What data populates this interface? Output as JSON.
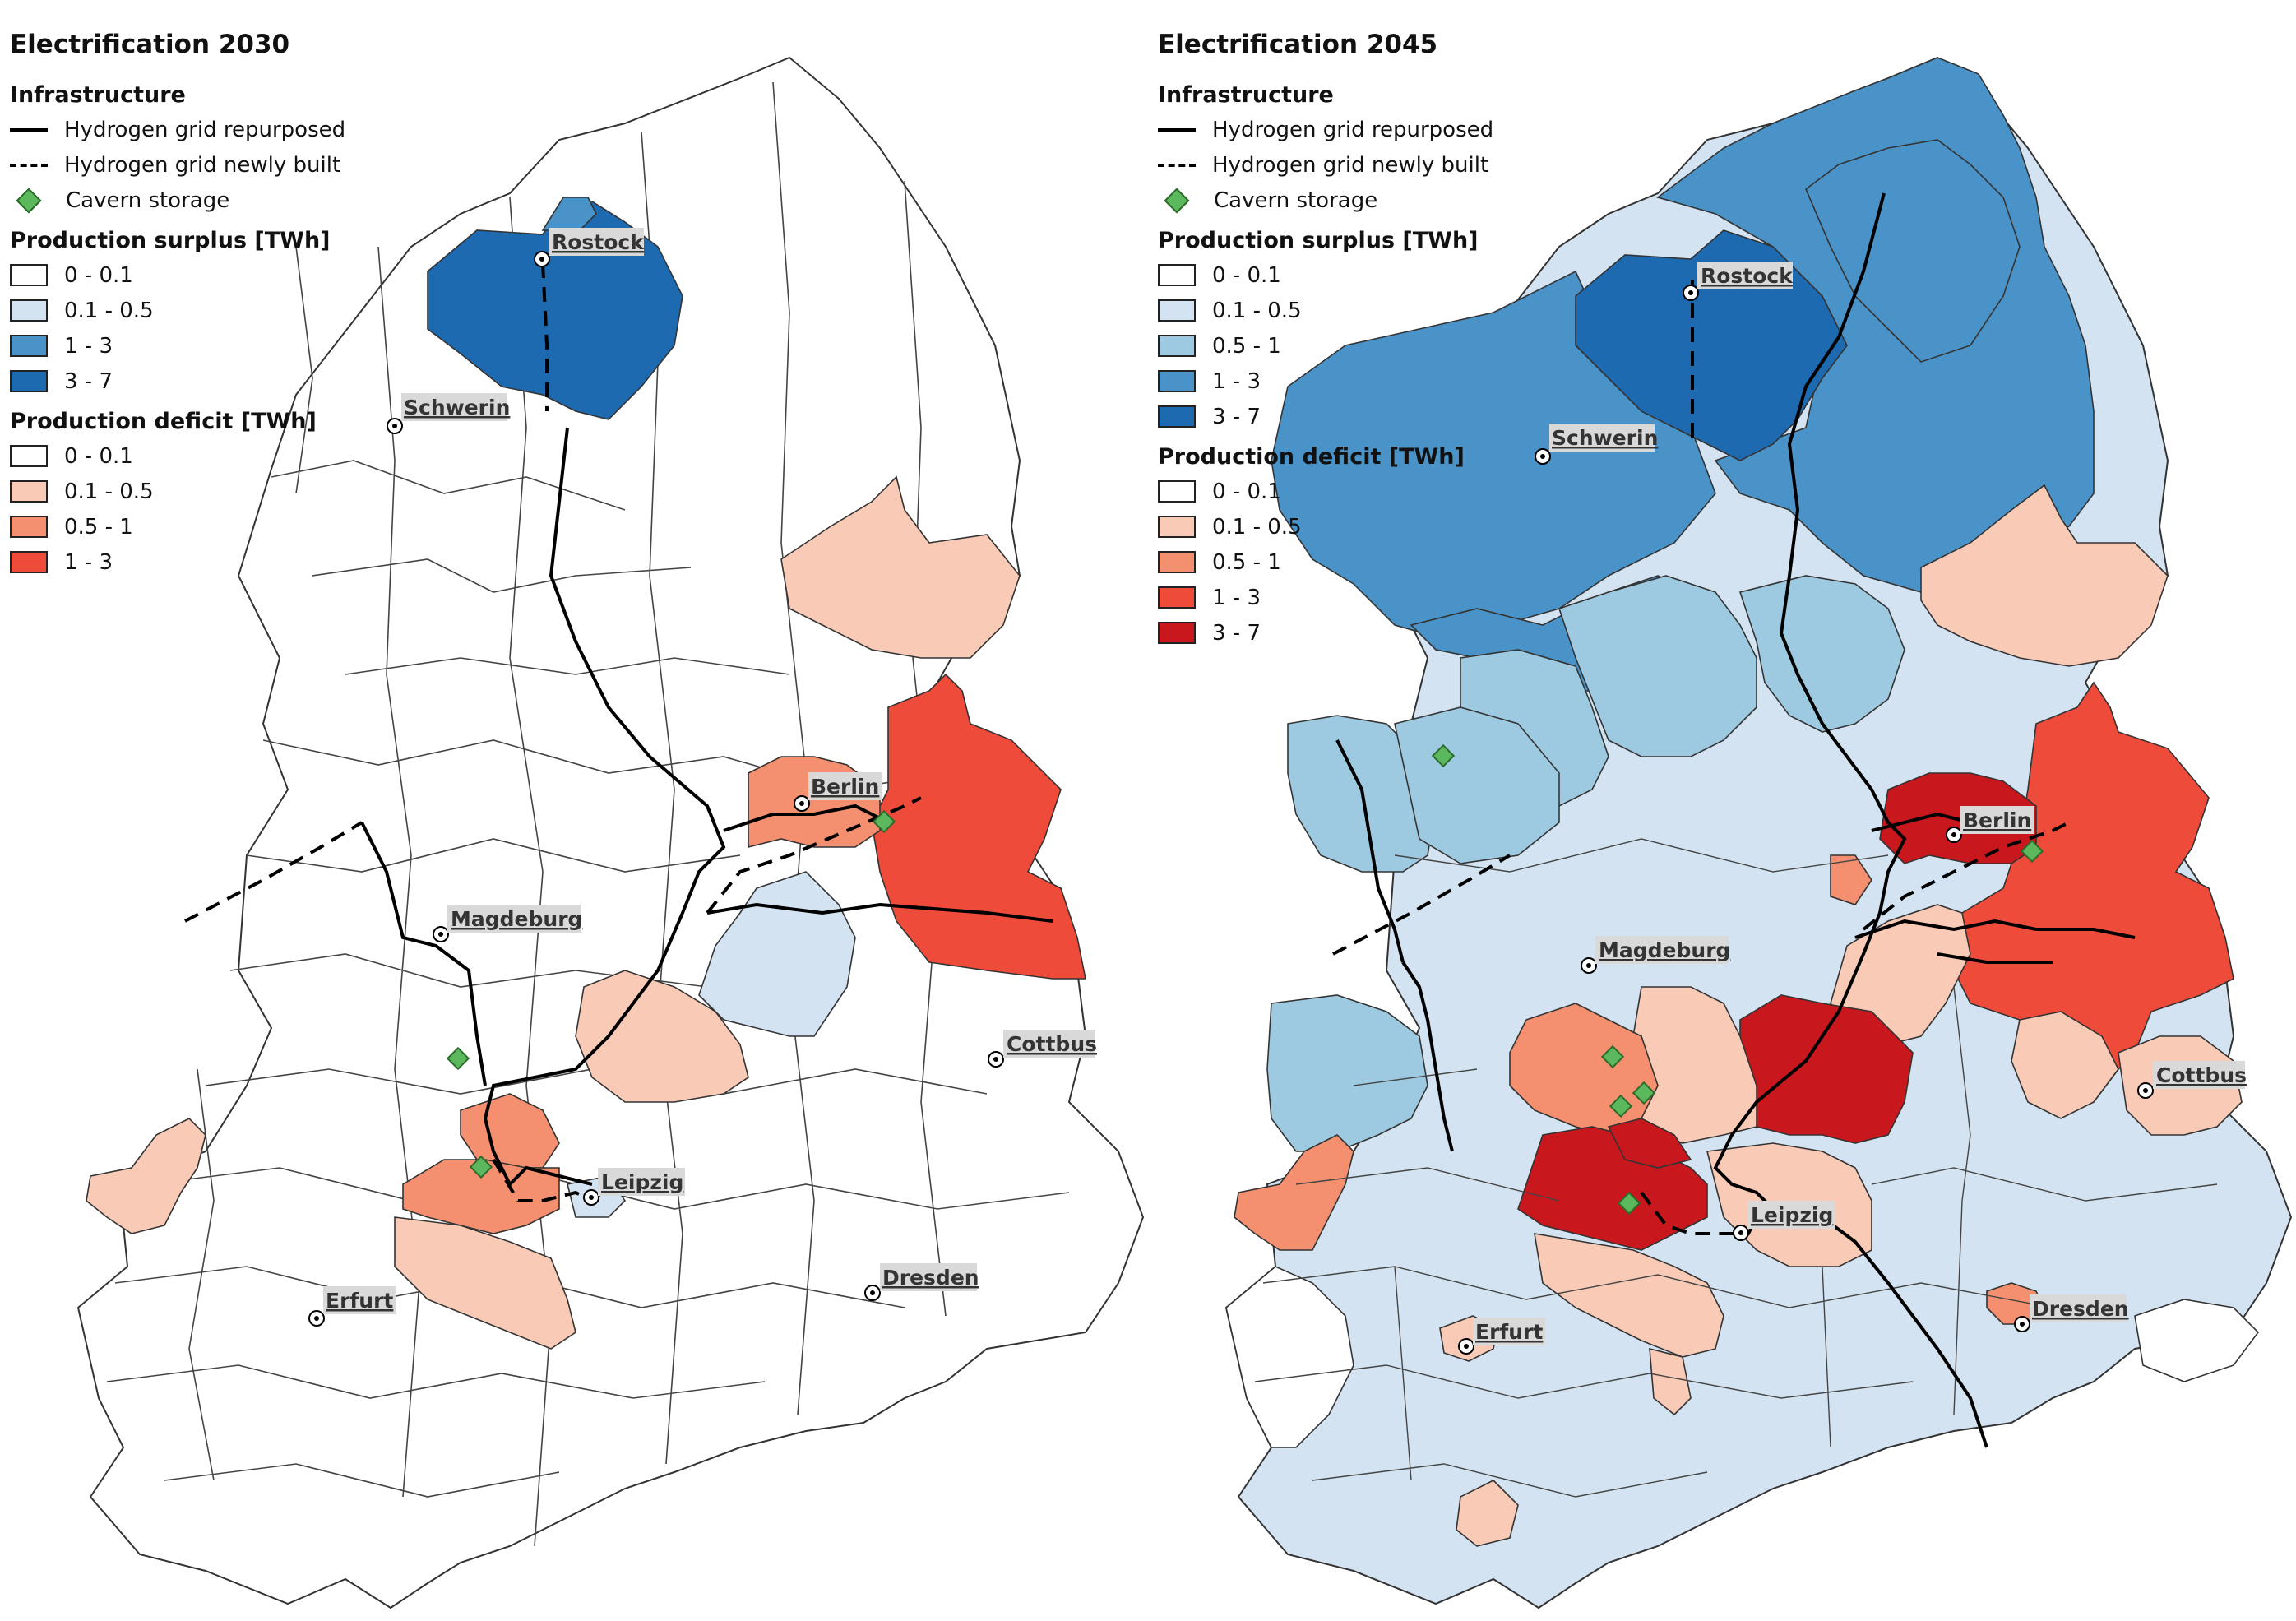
{
  "colors": {
    "surplus_0": "#ffffff",
    "surplus_1": "#d3e3f2",
    "surplus_2": "#9ecae1",
    "surplus_3": "#4a93c8",
    "surplus_4": "#1d6ab1",
    "deficit_0": "#ffffff",
    "deficit_1": "#f9cbb7",
    "deficit_2": "#f4906f",
    "deficit_3": "#ef4b3b",
    "deficit_4": "#c8171d",
    "storage": "#5cb85c",
    "grid": "#000000"
  },
  "legend_common": {
    "infrastructure": "Infrastructure",
    "grid_repurposed": "Hydrogen grid repurposed",
    "grid_new": "Hydrogen grid newly built",
    "storage": "Cavern storage",
    "surplus_title": "Production surplus [TWh]",
    "deficit_title": "Production deficit [TWh]"
  },
  "maps": [
    {
      "title": "Electrification 2030",
      "surplus": [
        "0 - 0.1",
        "0.1 - 0.5",
        "1 - 3",
        "3 - 7"
      ],
      "deficit": [
        "0 - 0.1",
        "0.1 - 0.5",
        "0.5 - 1",
        "1 - 3"
      ],
      "cities": [
        "Rostock",
        "Schwerin",
        "Berlin",
        "Magdeburg",
        "Cottbus",
        "Leipzig",
        "Erfurt",
        "Dresden"
      ]
    },
    {
      "title": "Electrification 2045",
      "surplus": [
        "0 - 0.1",
        "0.1 - 0.5",
        "0.5 - 1",
        "1 - 3",
        "3 - 7"
      ],
      "deficit": [
        "0 - 0.1",
        "0.1 - 0.5",
        "0.5 - 1",
        "1 - 3",
        "3 - 7"
      ],
      "cities": [
        "Rostock",
        "Schwerin",
        "Berlin",
        "Magdeburg",
        "Cottbus",
        "Leipzig",
        "Erfurt",
        "Dresden"
      ]
    }
  ]
}
